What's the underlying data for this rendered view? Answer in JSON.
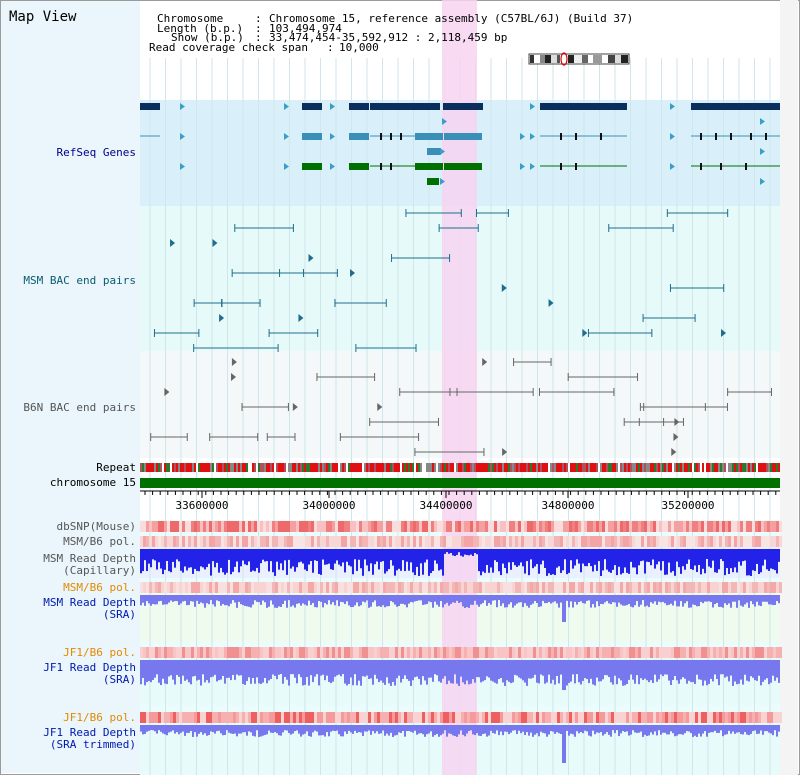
{
  "title": "Map View",
  "header": {
    "chromosome_label": "Chromosome",
    "chromosome_value": "Chromosome 15, reference assembly (C57BL/6J) (Build 37)",
    "length_label": "Length (b.p.)",
    "length_value": "103,494,974",
    "show_label": "Show (b.p.)",
    "show_value": "33,474,454-35,592,912 : 2,118,459 bp",
    "coverage_label": "Read coverage check span",
    "coverage_value": "10,000"
  },
  "tracks": {
    "refseq": "RefSeq Genes",
    "msm_bac": "MSM BAC end pairs",
    "b6n_bac": "B6N BAC end pairs",
    "repeat": "Repeat",
    "chromosome": "chromosome 15",
    "dbsnp": "dbSNP(Mouse)",
    "msm_b6_pol_1": "MSM/B6 pol.",
    "msm_depth_cap_1": "MSM Read Depth",
    "msm_depth_cap_2": "(Capillary)",
    "msm_b6_pol_2": "MSM/B6 pol.",
    "msm_depth_sra_1": "MSM Read Depth",
    "msm_depth_sra_2": "(SRA)",
    "jf1_b6_pol_1": "JF1/B6 pol.",
    "jf1_depth_sra_1": "JF1 Read Depth",
    "jf1_depth_sra_2": "(SRA)",
    "jf1_b6_pol_2": "JF1/B6 pol.",
    "jf1_depth_trim_1": "JF1 Read Depth",
    "jf1_depth_trim_2": "(SRA trimmed)"
  },
  "axis": {
    "ticks": [
      "33600000",
      "34000000",
      "34400000",
      "34800000",
      "35200000"
    ]
  },
  "colors": {
    "highlight": "#f7d3f1",
    "refseq_bg": "#d9f0fa",
    "gene_dark": "#0a2f5c",
    "gene_mid": "#3a8fb8",
    "gene_green": "#007000",
    "chromosome_bar": "#007000",
    "msm_color": "#1f6d8c",
    "b6n_color": "#666666",
    "depth_blue": "#2222e8",
    "depth_light": "#7777ee"
  }
}
